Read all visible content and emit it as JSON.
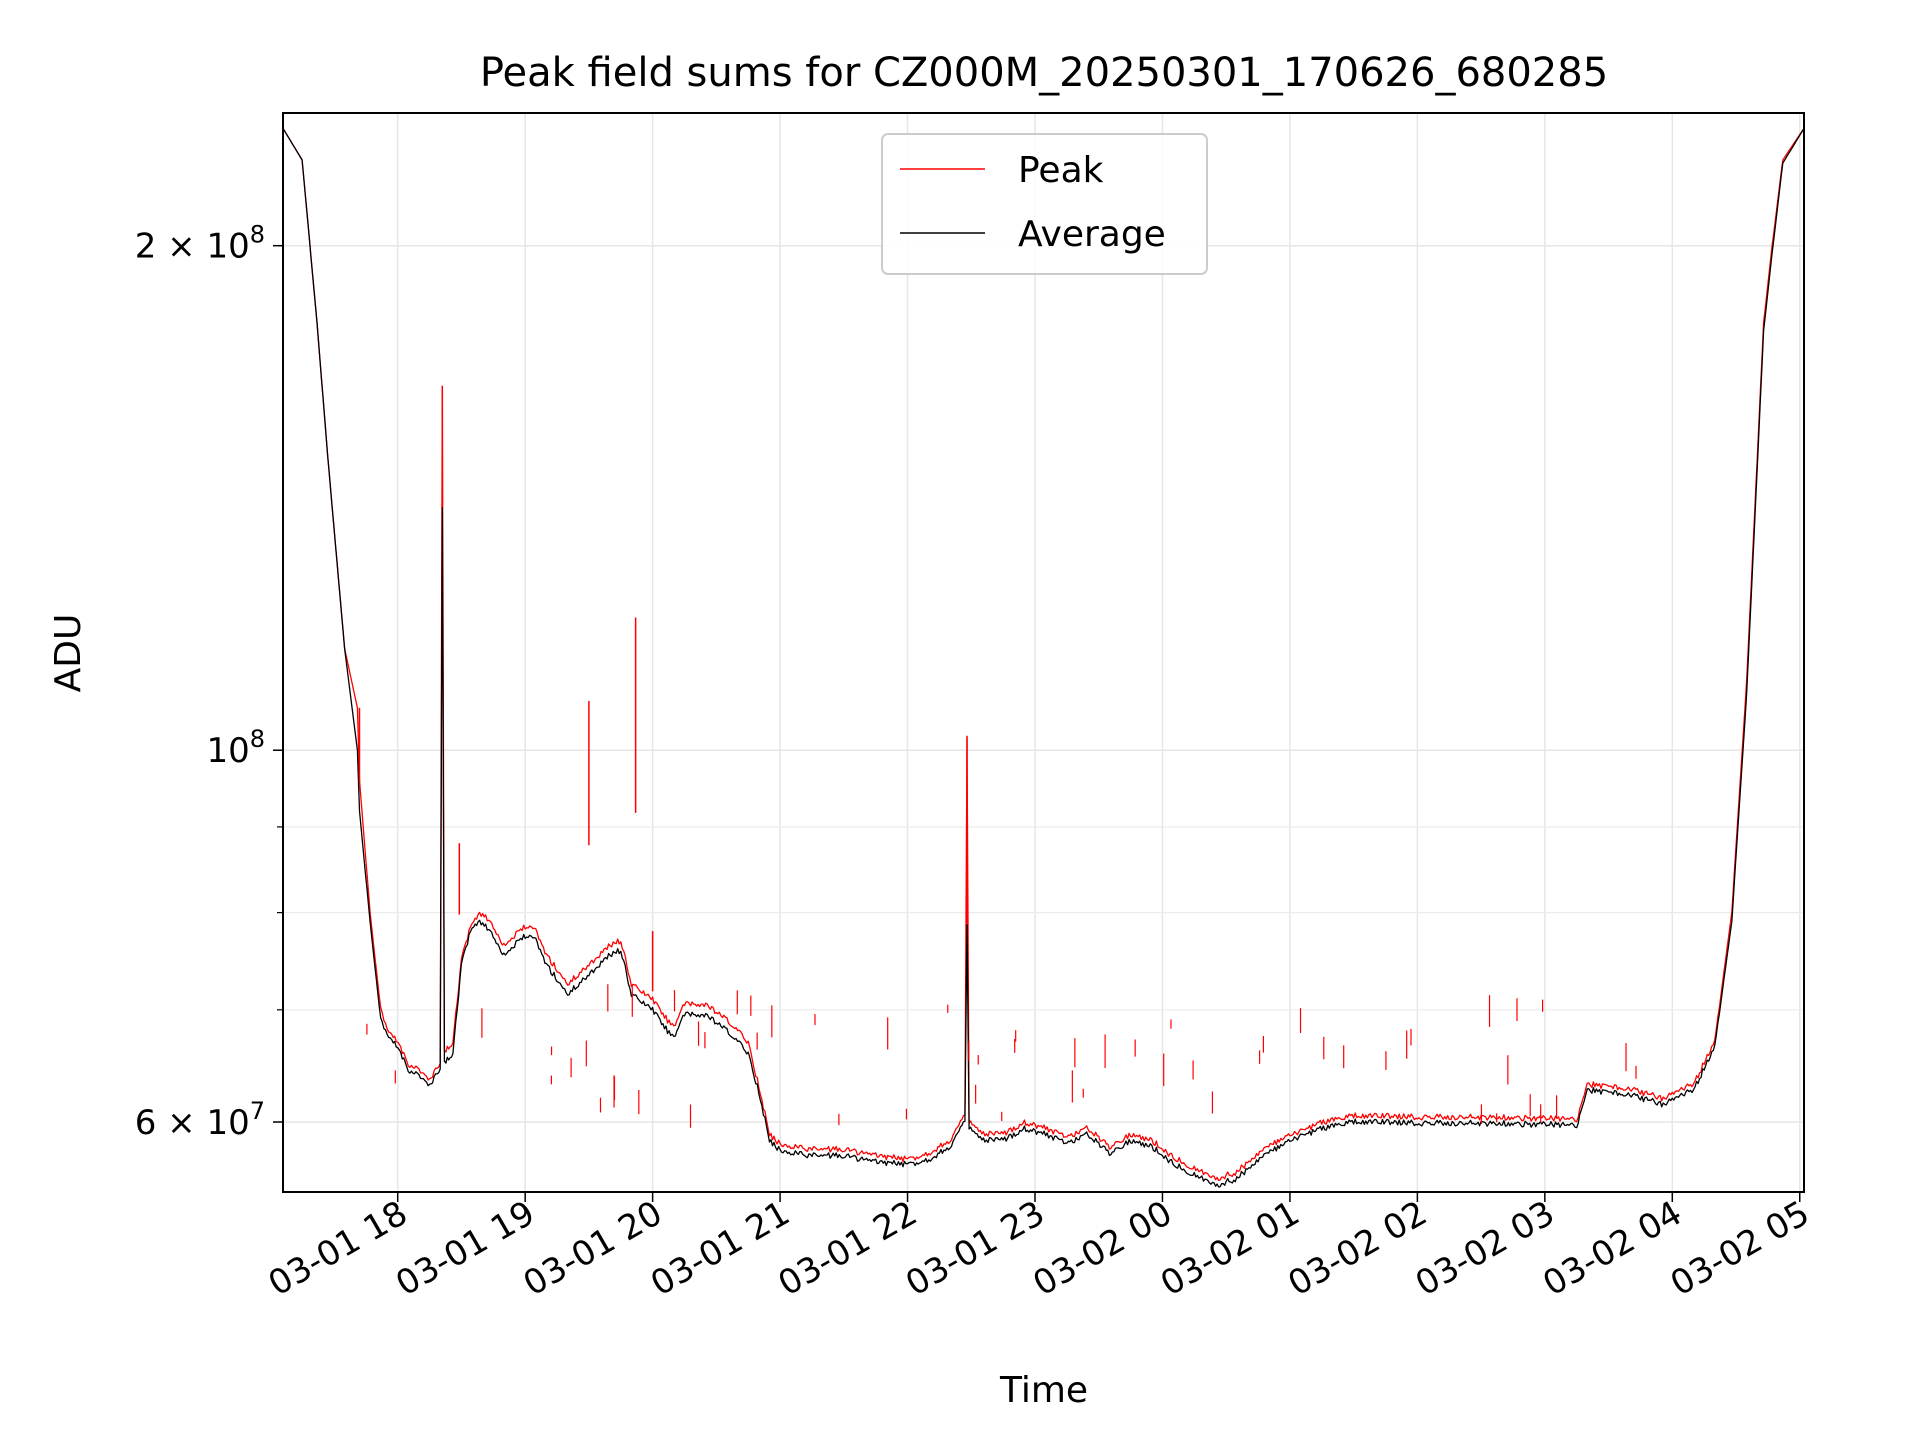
{
  "chart_data": {
    "type": "line",
    "title": "Peak field sums for CZ000M_20250301_170626_680285",
    "xlabel": "Time",
    "ylabel": "ADU",
    "y_scale": "log",
    "xlim": [
      "2025-03-01 17:06",
      "2025-03-02 05:02"
    ],
    "ylim": [
      54500000,
      240000000
    ],
    "x_ticks": [
      "03-01 18",
      "03-01 19",
      "03-01 20",
      "03-01 21",
      "03-01 22",
      "03-01 23",
      "03-02 00",
      "03-02 01",
      "03-02 02",
      "03-02 03",
      "03-02 04",
      "03-02 05"
    ],
    "y_major_ticks": [
      {
        "value": 60000000,
        "mantissa": "6",
        "exponent": "7"
      },
      {
        "value": 100000000,
        "mantissa": "",
        "exponent": "8"
      },
      {
        "value": 200000000,
        "mantissa": "2",
        "exponent": "8"
      }
    ],
    "y_minor_ticks": [
      70000000,
      80000000,
      90000000
    ],
    "grid": true,
    "legend_position": "top-center",
    "series": [
      {
        "name": "Peak",
        "color": "#ff0000",
        "points": [
          [
            "2025-03-01 17:06",
            235000000
          ],
          [
            "2025-03-01 17:15",
            225000000
          ],
          [
            "2025-03-01 17:22",
            180000000
          ],
          [
            "2025-03-01 17:27",
            150000000
          ],
          [
            "2025-03-01 17:35",
            115000000
          ],
          [
            "2025-03-01 17:41",
            106000000
          ],
          [
            "2025-03-01 17:42",
            96000000
          ],
          [
            "2025-03-01 17:47",
            80000000
          ],
          [
            "2025-03-01 17:52",
            70000000
          ],
          [
            "2025-03-01 17:55",
            68000000
          ],
          [
            "2025-03-01 18:00",
            67000000
          ],
          [
            "2025-03-01 18:05",
            65000000
          ],
          [
            "2025-03-01 18:10",
            64500000
          ],
          [
            "2025-03-01 18:15",
            63500000
          ],
          [
            "2025-03-01 18:20",
            65000000
          ],
          [
            "2025-03-01 18:21",
            165000000
          ],
          [
            "2025-03-01 18:22",
            66000000
          ],
          [
            "2025-03-01 18:26",
            67000000
          ],
          [
            "2025-03-01 18:30",
            75000000
          ],
          [
            "2025-03-01 18:35",
            79000000
          ],
          [
            "2025-03-01 18:40",
            80000000
          ],
          [
            "2025-03-01 18:45",
            78500000
          ],
          [
            "2025-03-01 18:50",
            76500000
          ],
          [
            "2025-03-01 19:00",
            78500000
          ],
          [
            "2025-03-01 19:05",
            78000000
          ],
          [
            "2025-03-01 19:10",
            75500000
          ],
          [
            "2025-03-01 19:20",
            72500000
          ],
          [
            "2025-03-01 19:30",
            74500000
          ],
          [
            "2025-03-01 19:40",
            76500000
          ],
          [
            "2025-03-01 19:45",
            77000000
          ],
          [
            "2025-03-01 19:50",
            72500000
          ],
          [
            "2025-03-01 20:00",
            71000000
          ],
          [
            "2025-03-01 20:07",
            69000000
          ],
          [
            "2025-03-01 20:10",
            68500000
          ],
          [
            "2025-03-01 20:15",
            70500000
          ],
          [
            "2025-03-01 20:25",
            70500000
          ],
          [
            "2025-03-01 20:35",
            69000000
          ],
          [
            "2025-03-01 20:45",
            67000000
          ],
          [
            "2025-03-01 20:50",
            63000000
          ],
          [
            "2025-03-01 20:55",
            59000000
          ],
          [
            "2025-03-01 21:00",
            58200000
          ],
          [
            "2025-03-01 21:15",
            57800000
          ],
          [
            "2025-03-01 21:30",
            57800000
          ],
          [
            "2025-03-01 21:45",
            57300000
          ],
          [
            "2025-03-01 22:00",
            57000000
          ],
          [
            "2025-03-01 22:10",
            57500000
          ],
          [
            "2025-03-01 22:20",
            58500000
          ],
          [
            "2025-03-01 22:27",
            60500000
          ],
          [
            "2025-03-01 22:28",
            102000000
          ],
          [
            "2025-03-01 22:29",
            60000000
          ],
          [
            "2025-03-01 22:35",
            59000000
          ],
          [
            "2025-03-01 22:45",
            59000000
          ],
          [
            "2025-03-01 22:55",
            60000000
          ],
          [
            "2025-03-01 23:05",
            59500000
          ],
          [
            "2025-03-01 23:15",
            58800000
          ],
          [
            "2025-03-01 23:25",
            59500000
          ],
          [
            "2025-03-01 23:35",
            58000000
          ],
          [
            "2025-03-01 23:45",
            59000000
          ],
          [
            "2025-03-01 23:55",
            58500000
          ],
          [
            "2025-03-02 00:05",
            57200000
          ],
          [
            "2025-03-02 00:15",
            56300000
          ],
          [
            "2025-03-02 00:25",
            55500000
          ],
          [
            "2025-03-02 00:35",
            56000000
          ],
          [
            "2025-03-02 00:45",
            57500000
          ],
          [
            "2025-03-02 00:55",
            58500000
          ],
          [
            "2025-03-02 01:05",
            59200000
          ],
          [
            "2025-03-02 01:15",
            60000000
          ],
          [
            "2025-03-02 01:30",
            60500000
          ],
          [
            "2025-03-02 01:45",
            60500000
          ],
          [
            "2025-03-02 02:00",
            60400000
          ],
          [
            "2025-03-02 02:30",
            60400000
          ],
          [
            "2025-03-02 03:00",
            60300000
          ],
          [
            "2025-03-02 03:15",
            60200000
          ],
          [
            "2025-03-02 03:20",
            63200000
          ],
          [
            "2025-03-02 03:40",
            62800000
          ],
          [
            "2025-03-02 03:55",
            62000000
          ],
          [
            "2025-03-02 04:10",
            63200000
          ],
          [
            "2025-03-02 04:20",
            67000000
          ],
          [
            "2025-03-02 04:28",
            80000000
          ],
          [
            "2025-03-02 04:35",
            110000000
          ],
          [
            "2025-03-02 04:43",
            180000000
          ],
          [
            "2025-03-02 04:47",
            200000000
          ],
          [
            "2025-03-02 04:52",
            225000000
          ],
          [
            "2025-03-02 05:02",
            235000000
          ]
        ]
      },
      {
        "name": "Average",
        "color": "#000000",
        "points": [
          [
            "2025-03-01 17:06",
            235000000
          ],
          [
            "2025-03-01 17:15",
            225000000
          ],
          [
            "2025-03-01 17:22",
            180000000
          ],
          [
            "2025-03-01 17:27",
            150000000
          ],
          [
            "2025-03-01 17:35",
            115000000
          ],
          [
            "2025-03-01 17:41",
            100000000
          ],
          [
            "2025-03-01 17:42",
            92000000
          ],
          [
            "2025-03-01 17:47",
            79000000
          ],
          [
            "2025-03-01 17:52",
            69000000
          ],
          [
            "2025-03-01 17:55",
            67500000
          ],
          [
            "2025-03-01 18:00",
            66500000
          ],
          [
            "2025-03-01 18:05",
            64500000
          ],
          [
            "2025-03-01 18:10",
            64000000
          ],
          [
            "2025-03-01 18:15",
            63000000
          ],
          [
            "2025-03-01 18:20",
            64500000
          ],
          [
            "2025-03-01 18:21",
            140000000
          ],
          [
            "2025-03-01 18:22",
            65000000
          ],
          [
            "2025-03-01 18:26",
            66000000
          ],
          [
            "2025-03-01 18:30",
            74500000
          ],
          [
            "2025-03-01 18:35",
            78500000
          ],
          [
            "2025-03-01 18:40",
            79000000
          ],
          [
            "2025-03-01 18:45",
            77500000
          ],
          [
            "2025-03-01 18:50",
            75500000
          ],
          [
            "2025-03-01 19:00",
            77500000
          ],
          [
            "2025-03-01 19:05",
            77000000
          ],
          [
            "2025-03-01 19:10",
            74500000
          ],
          [
            "2025-03-01 19:20",
            71500000
          ],
          [
            "2025-03-01 19:30",
            73500000
          ],
          [
            "2025-03-01 19:40",
            75500000
          ],
          [
            "2025-03-01 19:45",
            76000000
          ],
          [
            "2025-03-01 19:50",
            71500000
          ],
          [
            "2025-03-01 20:00",
            70000000
          ],
          [
            "2025-03-01 20:07",
            68000000
          ],
          [
            "2025-03-01 20:10",
            67500000
          ],
          [
            "2025-03-01 20:15",
            69500000
          ],
          [
            "2025-03-01 20:25",
            69500000
          ],
          [
            "2025-03-01 20:35",
            68000000
          ],
          [
            "2025-03-01 20:45",
            66000000
          ],
          [
            "2025-03-01 20:50",
            62500000
          ],
          [
            "2025-03-01 20:55",
            58500000
          ],
          [
            "2025-03-01 21:00",
            57700000
          ],
          [
            "2025-03-01 21:15",
            57300000
          ],
          [
            "2025-03-01 21:30",
            57300000
          ],
          [
            "2025-03-01 21:45",
            56800000
          ],
          [
            "2025-03-01 22:00",
            56600000
          ],
          [
            "2025-03-01 22:10",
            57000000
          ],
          [
            "2025-03-01 22:20",
            58000000
          ],
          [
            "2025-03-01 22:27",
            60000000
          ],
          [
            "2025-03-01 22:28",
            79000000
          ],
          [
            "2025-03-01 22:29",
            59500000
          ],
          [
            "2025-03-01 22:35",
            58500000
          ],
          [
            "2025-03-01 22:45",
            58500000
          ],
          [
            "2025-03-01 22:55",
            59500000
          ],
          [
            "2025-03-01 23:05",
            59000000
          ],
          [
            "2025-03-01 23:15",
            58300000
          ],
          [
            "2025-03-01 23:25",
            59000000
          ],
          [
            "2025-03-01 23:35",
            57500000
          ],
          [
            "2025-03-01 23:45",
            58500000
          ],
          [
            "2025-03-01 23:55",
            58000000
          ],
          [
            "2025-03-02 00:05",
            56700000
          ],
          [
            "2025-03-02 00:15",
            55800000
          ],
          [
            "2025-03-02 00:25",
            55000000
          ],
          [
            "2025-03-02 00:35",
            55500000
          ],
          [
            "2025-03-02 00:45",
            57000000
          ],
          [
            "2025-03-02 00:55",
            58000000
          ],
          [
            "2025-03-02 01:05",
            58800000
          ],
          [
            "2025-03-02 01:15",
            59500000
          ],
          [
            "2025-03-02 01:30",
            60000000
          ],
          [
            "2025-03-02 01:45",
            60000000
          ],
          [
            "2025-03-02 02:00",
            59900000
          ],
          [
            "2025-03-02 02:30",
            59900000
          ],
          [
            "2025-03-02 03:00",
            59800000
          ],
          [
            "2025-03-02 03:15",
            59700000
          ],
          [
            "2025-03-02 03:20",
            62700000
          ],
          [
            "2025-03-02 03:40",
            62300000
          ],
          [
            "2025-03-02 03:55",
            61500000
          ],
          [
            "2025-03-02 04:10",
            62700000
          ],
          [
            "2025-03-02 04:20",
            66500000
          ],
          [
            "2025-03-02 04:28",
            79000000
          ],
          [
            "2025-03-02 04:35",
            108000000
          ],
          [
            "2025-03-02 04:43",
            178000000
          ],
          [
            "2025-03-02 04:47",
            198000000
          ],
          [
            "2025-03-02 04:52",
            224000000
          ],
          [
            "2025-03-02 05:02",
            235000000
          ]
        ]
      }
    ],
    "spikes": [
      {
        "time": "2025-03-01 17:42",
        "peak": 106000000,
        "average": 96000000
      },
      {
        "time": "2025-03-01 18:21",
        "peak": 165000000,
        "average": 140000000
      },
      {
        "time": "2025-03-01 18:29",
        "peak": 88000000,
        "average": 80000000
      },
      {
        "time": "2025-03-01 19:30",
        "peak": 107000000,
        "average": 88000000
      },
      {
        "time": "2025-03-01 19:52",
        "peak": 120000000,
        "average": 92000000
      },
      {
        "time": "2025-03-01 20:00",
        "peak": 78000000,
        "average": 72000000
      },
      {
        "time": "2025-03-01 22:28",
        "peak": 102000000,
        "average": 79000000
      }
    ]
  }
}
